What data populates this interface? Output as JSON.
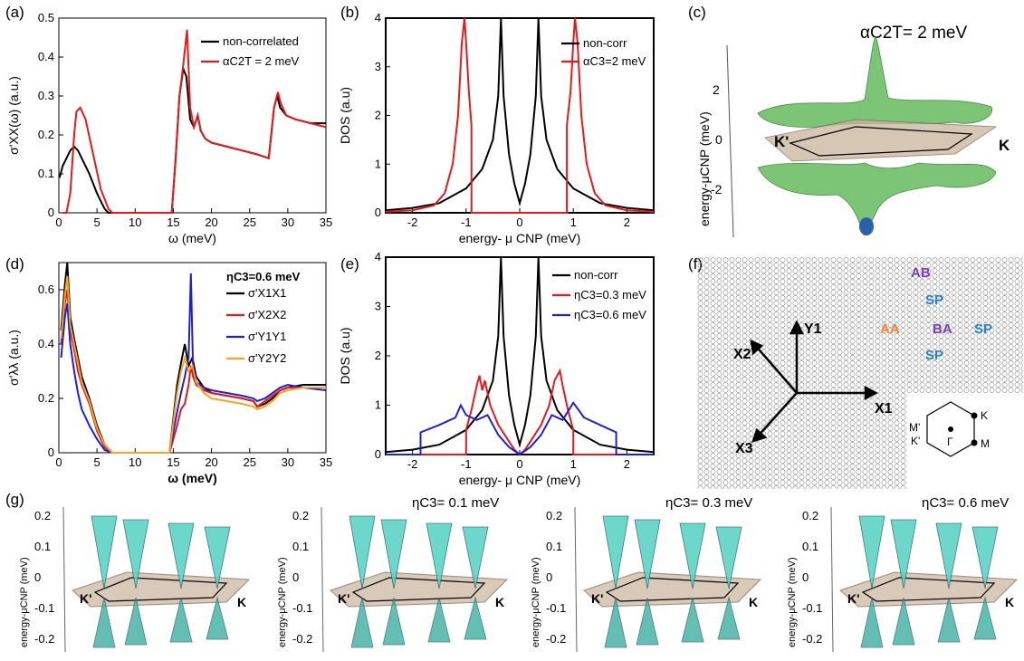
{
  "labels": {
    "a": "(a)",
    "b": "(b)",
    "c": "(c)",
    "d": "(d)",
    "e": "(e)",
    "f": "(f)",
    "g": "(g)"
  },
  "colors": {
    "black": "#000000",
    "red": "#e41a1c",
    "blue": "#1f1fd6",
    "orange": "#f5a623",
    "green": "#7cc576",
    "teal": "#5fd3c6",
    "plane": "#c9b39b"
  },
  "chart_data": [
    {
      "id": "a",
      "type": "line",
      "xlabel": "ω (meV)",
      "ylabel": "σ'XX(ω) (a.u.)",
      "xlim": [
        0,
        35
      ],
      "ylim": [
        0,
        0.5
      ],
      "xticks": [
        0,
        5,
        10,
        15,
        20,
        25,
        30,
        35
      ],
      "yticks": [
        0,
        0.1,
        0.2,
        0.3,
        0.4,
        0.5
      ],
      "legend": "top-right",
      "series": [
        {
          "name": "non-correlated",
          "color": "#000000",
          "x": [
            0.1,
            0.5,
            1,
            1.5,
            2,
            2.5,
            3,
            4,
            5,
            6,
            6.5,
            7,
            14.8,
            15.3,
            15.8,
            16.3,
            16.7,
            17.2,
            17.7,
            18.2,
            18.6,
            19.2,
            20,
            22,
            24,
            26,
            27.5,
            28.2,
            28.6,
            29,
            29.8,
            31,
            33,
            35
          ],
          "y": [
            0.09,
            0.12,
            0.14,
            0.16,
            0.17,
            0.16,
            0.14,
            0.1,
            0.05,
            0.01,
            0.0,
            0.0,
            0.0,
            0.14,
            0.3,
            0.37,
            0.35,
            0.24,
            0.22,
            0.25,
            0.21,
            0.19,
            0.18,
            0.17,
            0.16,
            0.15,
            0.14,
            0.27,
            0.3,
            0.27,
            0.25,
            0.24,
            0.23,
            0.23
          ]
        },
        {
          "name": "αC2T = 2 meV",
          "color": "#e41a1c",
          "x": [
            0.5,
            1,
            1.5,
            2,
            2.3,
            2.8,
            3.5,
            4.5,
            5.5,
            6.5,
            7,
            14.8,
            15.3,
            15.8,
            16.3,
            16.8,
            17.2,
            17.7,
            18.2,
            18.6,
            19.2,
            20,
            22,
            24,
            26,
            27.5,
            28.2,
            28.7,
            29.1,
            29.8,
            31,
            33,
            35
          ],
          "y": [
            0.0,
            0.0,
            0.05,
            0.2,
            0.26,
            0.27,
            0.24,
            0.15,
            0.06,
            0.01,
            0.0,
            0.0,
            0.14,
            0.3,
            0.38,
            0.47,
            0.27,
            0.22,
            0.25,
            0.21,
            0.19,
            0.18,
            0.17,
            0.16,
            0.15,
            0.14,
            0.27,
            0.31,
            0.28,
            0.25,
            0.24,
            0.23,
            0.22
          ]
        }
      ]
    },
    {
      "id": "b",
      "type": "line",
      "xlabel": "energy- μ CNP (meV)",
      "ylabel": "DOS (a.u)",
      "xlim": [
        -2.5,
        2.5
      ],
      "ylim": [
        0,
        4
      ],
      "xticks": [
        -2,
        -1,
        0,
        1,
        2
      ],
      "yticks": [
        0,
        1,
        2,
        3,
        4
      ],
      "legend": "top-right",
      "series": [
        {
          "name": "non-corr",
          "color": "#000000",
          "x": [
            -2.5,
            -2,
            -1.5,
            -1,
            -0.7,
            -0.5,
            -0.4,
            -0.35,
            -0.3,
            -0.2,
            -0.1,
            0,
            0.1,
            0.2,
            0.3,
            0.35,
            0.4,
            0.5,
            0.7,
            1,
            1.5,
            2,
            2.5
          ],
          "y": [
            0.05,
            0.1,
            0.2,
            0.5,
            0.9,
            1.5,
            2.4,
            4.0,
            2.4,
            1.2,
            0.6,
            0.2,
            0.6,
            1.2,
            2.4,
            4.0,
            2.4,
            1.5,
            0.9,
            0.5,
            0.2,
            0.1,
            0.05
          ]
        },
        {
          "name": "αC3=2 meV",
          "color": "#e41a1c",
          "x": [
            -2.5,
            -2,
            -1.6,
            -1.4,
            -1.25,
            -1.15,
            -1.08,
            -1.03,
            -1.0,
            -0.95,
            -0.9,
            -0.9,
            -0.5,
            0,
            0.5,
            0.88,
            0.88,
            0.95,
            1.0,
            1.03,
            1.08,
            1.15,
            1.25,
            1.4,
            1.6,
            2,
            2.5
          ],
          "y": [
            0.02,
            0.05,
            0.15,
            0.4,
            1.0,
            2.0,
            3.5,
            4.0,
            3.5,
            2.5,
            1.8,
            0.0,
            0.0,
            0.0,
            0.0,
            0.0,
            1.8,
            2.5,
            3.5,
            4.0,
            3.5,
            2.0,
            1.0,
            0.4,
            0.15,
            0.05,
            0.02
          ]
        }
      ]
    },
    {
      "id": "c",
      "type": "surface",
      "title": "αC2T= 2 meV",
      "zlabel": "energy-μCNP (meV)",
      "zticks": [
        -2,
        0,
        2
      ],
      "points": [
        "K'",
        "K"
      ]
    },
    {
      "id": "d",
      "type": "line",
      "xlabel": "ω (meV)",
      "ylabel": "σ'λλ (a.u.)",
      "annotation": "ηC3=0.6 meV",
      "xlim": [
        0,
        35
      ],
      "ylim": [
        0,
        0.7
      ],
      "xticks": [
        0,
        5,
        10,
        15,
        20,
        25,
        30,
        35
      ],
      "yticks": [
        0,
        0.2,
        0.4,
        0.6
      ],
      "legend": "top-right",
      "series": [
        {
          "name": "σ'X1X1",
          "color": "#000000",
          "x": [
            0.3,
            0.8,
            1.1,
            1.5,
            2,
            2.5,
            3,
            4,
            5,
            6,
            7,
            14.5,
            15.5,
            16,
            16.5,
            17,
            17.5,
            18,
            19,
            20,
            22,
            24,
            25.5,
            26,
            27,
            28,
            29,
            30,
            32,
            35
          ],
          "y": [
            0.45,
            0.62,
            0.7,
            0.5,
            0.42,
            0.35,
            0.28,
            0.2,
            0.1,
            0.03,
            0.0,
            0.0,
            0.25,
            0.33,
            0.4,
            0.32,
            0.35,
            0.28,
            0.24,
            0.22,
            0.21,
            0.2,
            0.19,
            0.17,
            0.18,
            0.2,
            0.23,
            0.24,
            0.25,
            0.25
          ]
        },
        {
          "name": "σ'X2X2",
          "color": "#e41a1c",
          "x": [
            0.3,
            0.8,
            1.1,
            1.5,
            2,
            2.5,
            3,
            4,
            5,
            6,
            7,
            14.5,
            15.5,
            16,
            16.5,
            17,
            17.3,
            17.6,
            18,
            19,
            20,
            22,
            24,
            25.5,
            26,
            27,
            28,
            29,
            30,
            32,
            35
          ],
          "y": [
            0.4,
            0.55,
            0.6,
            0.45,
            0.38,
            0.3,
            0.25,
            0.18,
            0.08,
            0.02,
            0.0,
            0.0,
            0.1,
            0.16,
            0.18,
            0.25,
            0.32,
            0.28,
            0.25,
            0.23,
            0.22,
            0.21,
            0.2,
            0.19,
            0.17,
            0.19,
            0.21,
            0.23,
            0.24,
            0.24,
            0.24
          ]
        },
        {
          "name": "σ'Y1Y1",
          "color": "#1f1fd6",
          "x": [
            0.3,
            0.8,
            1.1,
            1.5,
            2,
            2.5,
            3,
            4,
            5,
            6,
            7,
            14.5,
            15.5,
            16,
            16.5,
            17,
            17.3,
            17.6,
            18,
            19,
            20,
            22,
            24,
            25.5,
            26,
            27,
            28,
            29,
            30,
            32,
            35
          ],
          "y": [
            0.35,
            0.5,
            0.55,
            0.4,
            0.3,
            0.22,
            0.16,
            0.1,
            0.05,
            0.01,
            0.0,
            0.0,
            0.15,
            0.22,
            0.28,
            0.35,
            0.66,
            0.3,
            0.26,
            0.24,
            0.23,
            0.22,
            0.21,
            0.2,
            0.19,
            0.2,
            0.22,
            0.24,
            0.25,
            0.24,
            0.23
          ]
        },
        {
          "name": "σ'Y2Y2",
          "color": "#f5a623",
          "x": [
            0.3,
            0.8,
            1.1,
            1.5,
            2,
            2.5,
            3,
            4,
            5,
            6,
            7,
            14.5,
            15.5,
            16,
            16.5,
            17,
            17.5,
            18,
            19,
            20,
            22,
            24,
            25.5,
            26,
            27,
            28,
            29,
            30,
            32,
            35
          ],
          "y": [
            0.42,
            0.58,
            0.65,
            0.47,
            0.4,
            0.33,
            0.26,
            0.19,
            0.09,
            0.03,
            0.0,
            0.0,
            0.22,
            0.3,
            0.35,
            0.3,
            0.32,
            0.26,
            0.22,
            0.2,
            0.19,
            0.18,
            0.17,
            0.16,
            0.17,
            0.19,
            0.22,
            0.23,
            0.24,
            0.24
          ]
        }
      ]
    },
    {
      "id": "e",
      "type": "line",
      "xlabel": "energy- μ CNP (meV)",
      "ylabel": "DOS (a.u)",
      "xlim": [
        -2.5,
        2.5
      ],
      "ylim": [
        0,
        4
      ],
      "xticks": [
        -2,
        -1,
        0,
        1,
        2
      ],
      "yticks": [
        0,
        1,
        2,
        3,
        4
      ],
      "legend": "top-right",
      "series": [
        {
          "name": "non-corr",
          "color": "#000000",
          "x": [
            -2.5,
            -2,
            -1.5,
            -1,
            -0.7,
            -0.5,
            -0.4,
            -0.35,
            -0.3,
            -0.2,
            -0.1,
            0,
            0.1,
            0.2,
            0.3,
            0.35,
            0.4,
            0.5,
            0.7,
            1,
            1.5,
            2,
            2.5
          ],
          "y": [
            0.05,
            0.1,
            0.2,
            0.5,
            0.9,
            1.5,
            2.4,
            4.0,
            2.4,
            1.2,
            0.6,
            0.2,
            0.6,
            1.2,
            2.4,
            4.0,
            2.4,
            1.5,
            0.9,
            0.5,
            0.2,
            0.1,
            0.05
          ]
        },
        {
          "name": "ηC3=0.3 meV",
          "color": "#e41a1c",
          "x": [
            -2.5,
            -1.05,
            -1.0,
            -1.0,
            -0.9,
            -0.8,
            -0.75,
            -0.7,
            -0.65,
            -0.55,
            -0.4,
            -0.25,
            -0.1,
            0,
            0.1,
            0.25,
            0.4,
            0.55,
            0.65,
            0.7,
            0.75,
            0.8,
            0.9,
            1.0,
            1.0,
            1.05,
            2.5
          ],
          "y": [
            0.0,
            0.0,
            0.0,
            0.5,
            0.9,
            1.4,
            1.6,
            1.3,
            1.5,
            1.0,
            0.6,
            0.35,
            0.1,
            0.0,
            0.1,
            0.35,
            0.6,
            1.0,
            1.5,
            1.6,
            1.7,
            1.4,
            0.9,
            0.5,
            0.0,
            0.0,
            0.0
          ]
        },
        {
          "name": "ηC3=0.6 meV",
          "color": "#1f1fd6",
          "x": [
            -2.5,
            -1.85,
            -1.85,
            -1.5,
            -1.2,
            -1.1,
            -1.0,
            -0.8,
            -0.6,
            -0.4,
            -0.2,
            0,
            0.2,
            0.4,
            0.6,
            0.8,
            1.0,
            1.1,
            1.2,
            1.5,
            1.8,
            1.8,
            2.5
          ],
          "y": [
            0.0,
            0.0,
            0.45,
            0.6,
            0.75,
            1.0,
            0.8,
            0.7,
            0.8,
            0.4,
            0.15,
            0.0,
            0.15,
            0.4,
            0.8,
            0.7,
            1.05,
            0.9,
            0.75,
            0.6,
            0.45,
            0.0,
            0.0
          ]
        }
      ]
    },
    {
      "id": "g",
      "type": "surface",
      "zlabel": "energy-μCNP (meV)",
      "zticks": [
        -0.2,
        -0.1,
        0.0,
        0.1,
        0.2
      ],
      "subtitles": [
        "ηC3= 0.1 meV",
        "ηC3= 0.3 meV",
        "ηC3= 0.6 meV"
      ],
      "points": [
        "K'",
        "K"
      ]
    }
  ],
  "lattice": {
    "regions": [
      "AB",
      "SP",
      "AA",
      "BA",
      "SP",
      "SP"
    ],
    "region_colors": {
      "AB": "#7a3fbf",
      "SP": "#2a7fd4",
      "AA": "#f5823a",
      "BA": "#7a3fbf"
    },
    "axes": [
      "X1",
      "X2",
      "X3",
      "Y1"
    ],
    "bz_points": [
      "K",
      "M'",
      "K'",
      "Γ",
      "M"
    ]
  }
}
